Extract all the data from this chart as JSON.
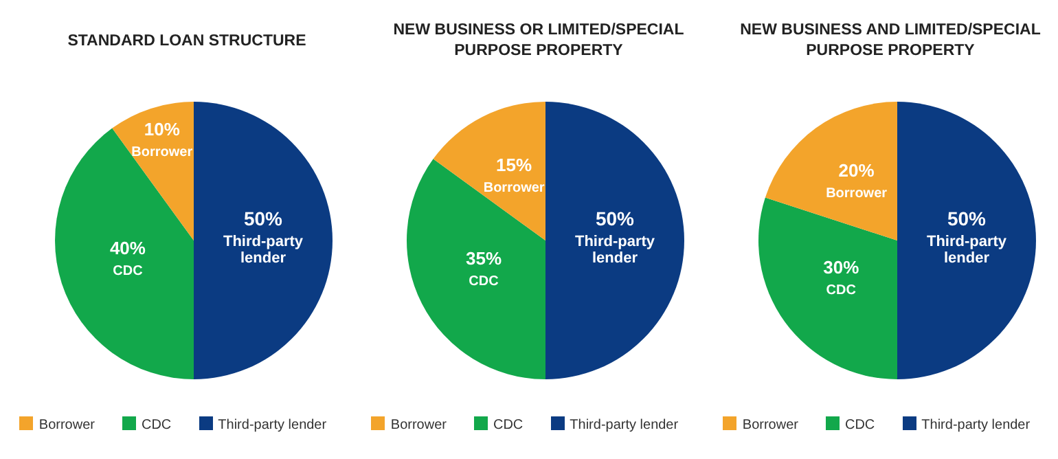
{
  "chart_data": [
    {
      "type": "pie",
      "title": "STANDARD LOAN STRUCTURE",
      "categories": [
        "Third-party lender",
        "CDC",
        "Borrower"
      ],
      "values": [
        50,
        40,
        10
      ],
      "value_labels": [
        "50%",
        "40%",
        "10%"
      ],
      "colors": [
        "#0b3b82",
        "#12a84b",
        "#f3a42b"
      ],
      "legend": "bottom"
    },
    {
      "type": "pie",
      "title": "NEW BUSINESS OR LIMITED/SPECIAL PURPOSE PROPERTY",
      "categories": [
        "Third-party lender",
        "CDC",
        "Borrower"
      ],
      "values": [
        50,
        35,
        15
      ],
      "value_labels": [
        "50%",
        "35%",
        "15%"
      ],
      "colors": [
        "#0b3b82",
        "#12a84b",
        "#f3a42b"
      ],
      "legend": "bottom"
    },
    {
      "type": "pie",
      "title": "NEW BUSINESS AND LIMITED/SPECIAL PURPOSE PROPERTY",
      "categories": [
        "Third-party lender",
        "CDC",
        "Borrower"
      ],
      "values": [
        50,
        30,
        20
      ],
      "value_labels": [
        "50%",
        "30%",
        "20%"
      ],
      "colors": [
        "#0b3b82",
        "#12a84b",
        "#f3a42b"
      ],
      "legend": "bottom"
    }
  ]
}
